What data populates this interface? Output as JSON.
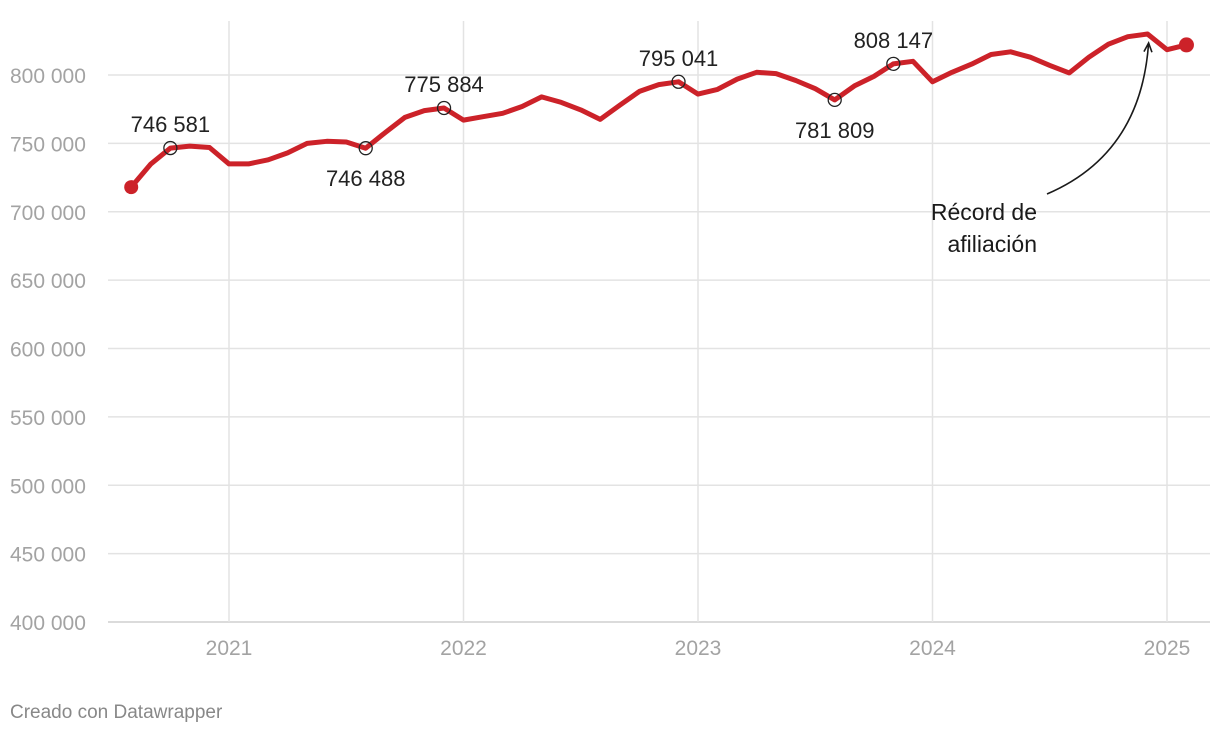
{
  "chart_data": {
    "type": "line",
    "title": "",
    "xlabel": "",
    "ylabel": "",
    "ylim": [
      400000,
      830000
    ],
    "xlim": [
      2020.5,
      2025.17
    ],
    "grid": true,
    "line_color": "#cc2229",
    "y_ticks": [
      {
        "value": 400000,
        "label": "400 000"
      },
      {
        "value": 450000,
        "label": "450 000"
      },
      {
        "value": 500000,
        "label": "500 000"
      },
      {
        "value": 550000,
        "label": "550 000"
      },
      {
        "value": 600000,
        "label": "600 000"
      },
      {
        "value": 650000,
        "label": "650 000"
      },
      {
        "value": 700000,
        "label": "700 000"
      },
      {
        "value": 750000,
        "label": "750 000"
      },
      {
        "value": 800000,
        "label": "800 000"
      }
    ],
    "x_ticks": [
      {
        "value": 2021,
        "label": "2021"
      },
      {
        "value": 2022,
        "label": "2022"
      },
      {
        "value": 2023,
        "label": "2023"
      },
      {
        "value": 2024,
        "label": "2024"
      },
      {
        "value": 2025,
        "label": "2025"
      }
    ],
    "series": [
      {
        "name": "Afiliación",
        "points": [
          [
            2020.583,
            718000
          ],
          [
            2020.667,
            735000
          ],
          [
            2020.75,
            746581
          ],
          [
            2020.833,
            748000
          ],
          [
            2020.917,
            747000
          ],
          [
            2021.0,
            735000
          ],
          [
            2021.083,
            735000
          ],
          [
            2021.167,
            738000
          ],
          [
            2021.25,
            743000
          ],
          [
            2021.333,
            750000
          ],
          [
            2021.417,
            751500
          ],
          [
            2021.5,
            751000
          ],
          [
            2021.583,
            746488
          ],
          [
            2021.667,
            758000
          ],
          [
            2021.75,
            769000
          ],
          [
            2021.833,
            774000
          ],
          [
            2021.917,
            775884
          ],
          [
            2022.0,
            767000
          ],
          [
            2022.083,
            769500
          ],
          [
            2022.167,
            772000
          ],
          [
            2022.25,
            777000
          ],
          [
            2022.333,
            784000
          ],
          [
            2022.417,
            780000
          ],
          [
            2022.5,
            774500
          ],
          [
            2022.583,
            767500
          ],
          [
            2022.667,
            778000
          ],
          [
            2022.75,
            788000
          ],
          [
            2022.833,
            793000
          ],
          [
            2022.917,
            795041
          ],
          [
            2023.0,
            786000
          ],
          [
            2023.083,
            789500
          ],
          [
            2023.167,
            797000
          ],
          [
            2023.25,
            802000
          ],
          [
            2023.333,
            801000
          ],
          [
            2023.417,
            796000
          ],
          [
            2023.5,
            790000
          ],
          [
            2023.583,
            781809
          ],
          [
            2023.667,
            792000
          ],
          [
            2023.75,
            799000
          ],
          [
            2023.833,
            808147
          ],
          [
            2023.917,
            810000
          ],
          [
            2024.0,
            795000
          ],
          [
            2024.083,
            802000
          ],
          [
            2024.167,
            808000
          ],
          [
            2024.25,
            815000
          ],
          [
            2024.333,
            817000
          ],
          [
            2024.417,
            813000
          ],
          [
            2024.5,
            807000
          ],
          [
            2024.583,
            801500
          ],
          [
            2024.667,
            813000
          ],
          [
            2024.75,
            822500
          ],
          [
            2024.833,
            828000
          ],
          [
            2024.917,
            830000
          ],
          [
            2025.0,
            818500
          ],
          [
            2025.083,
            822000
          ]
        ]
      }
    ],
    "data_labels": [
      {
        "x": 2020.75,
        "y": 746581,
        "label": "746 581",
        "position": "above"
      },
      {
        "x": 2021.583,
        "y": 746488,
        "label": "746 488",
        "position": "below"
      },
      {
        "x": 2021.917,
        "y": 775884,
        "label": "775 884",
        "position": "above"
      },
      {
        "x": 2022.917,
        "y": 795041,
        "label": "795 041",
        "position": "above"
      },
      {
        "x": 2023.583,
        "y": 781809,
        "label": "781 809",
        "position": "below"
      },
      {
        "x": 2023.833,
        "y": 808147,
        "label": "808 147",
        "position": "above"
      }
    ],
    "annotation": {
      "lines": [
        "Récord de",
        "afiliación"
      ],
      "target": {
        "x": 2024.917,
        "y": 830000
      }
    }
  },
  "footer": {
    "credit": "Creado con Datawrapper"
  }
}
